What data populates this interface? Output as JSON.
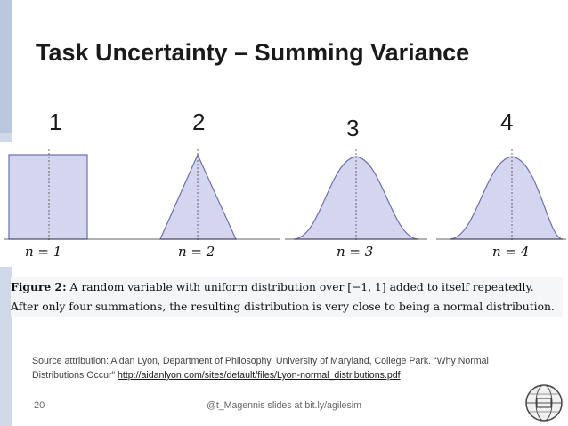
{
  "slide": {
    "title": "Task Uncertainty – Summing Variance",
    "numbers": [
      "1",
      "2",
      "3",
      "4"
    ],
    "figure_panels": [
      {
        "label": "n = 1",
        "shape": "uniform"
      },
      {
        "label": "n = 2",
        "shape": "triangular"
      },
      {
        "label": "n = 3",
        "shape": "bell"
      },
      {
        "label": "n = 4",
        "shape": "bell"
      }
    ],
    "caption_label": "Figure 2:",
    "caption_text": " A random variable with uniform distribution over [−1, 1] added to itself repeatedly. After only four summations, the resulting distribution is very close to being a normal distribution.",
    "source_text": "Source attribution: Aidan Lyon, Department of Philosophy. University of Maryland, College Park. “Why Normal Distributions Occur” ",
    "source_link": "http://aidanlyon.com/sites/default/files/Lyon-normal_distributions.pdf",
    "page_number": "20",
    "footer": "@t_Magennis slides at bit.ly/agilesim",
    "logo_icon": "globe-logo-icon"
  },
  "colors": {
    "accent_bar": "#cfd9ea",
    "fill": "#d3d6ee",
    "stroke": "#6b6fb0"
  }
}
